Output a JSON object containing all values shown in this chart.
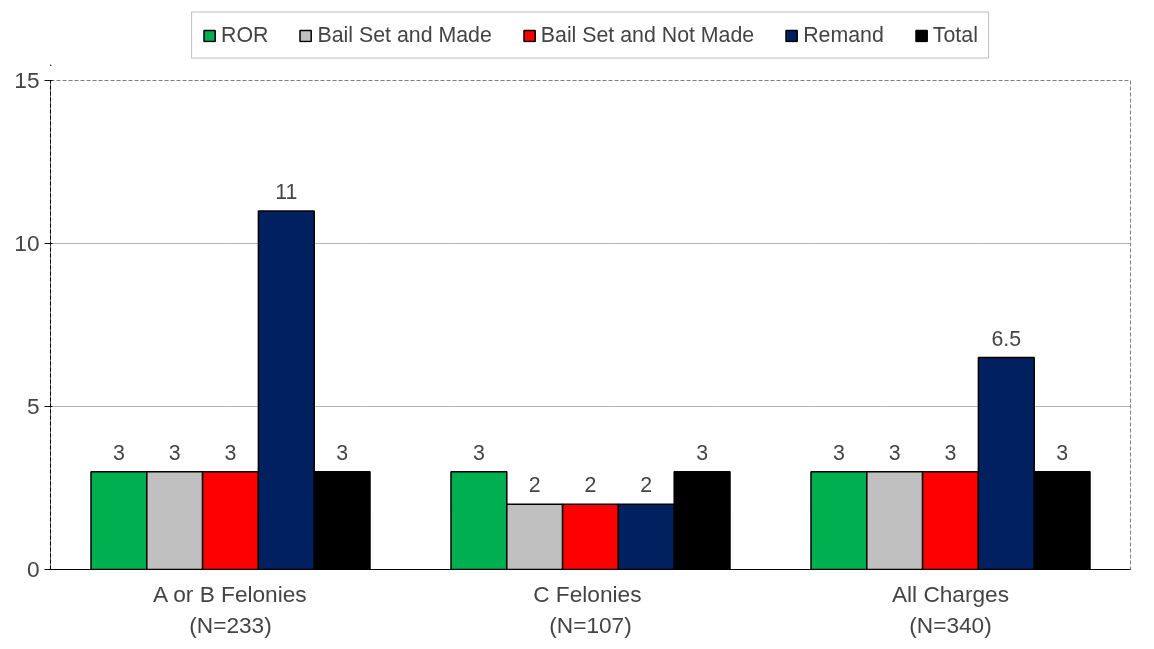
{
  "chart_data": {
    "type": "bar",
    "categories": [
      "A or B Felonies\n(N=233)",
      "C  Felonies\n(N=107)",
      "All Charges\n(N=340)"
    ],
    "series": [
      {
        "name": "ROR",
        "color": "#00b050",
        "values": [
          3,
          3,
          3
        ]
      },
      {
        "name": "Bail Set and Made",
        "color": "#c0c0c0",
        "values": [
          3,
          2,
          3
        ]
      },
      {
        "name": "Bail Set and Not Made",
        "color": "#ff0000",
        "values": [
          3,
          2,
          3
        ]
      },
      {
        "name": "Remand",
        "color": "#002060",
        "values": [
          11,
          2,
          6.5
        ]
      },
      {
        "name": "Total",
        "color": "#000000",
        "values": [
          3,
          3,
          3
        ]
      }
    ],
    "ylim": [
      0,
      15
    ],
    "yticks": [
      0,
      5,
      10,
      15
    ],
    "grid": "y",
    "legend": "top",
    "data_labels": true
  }
}
